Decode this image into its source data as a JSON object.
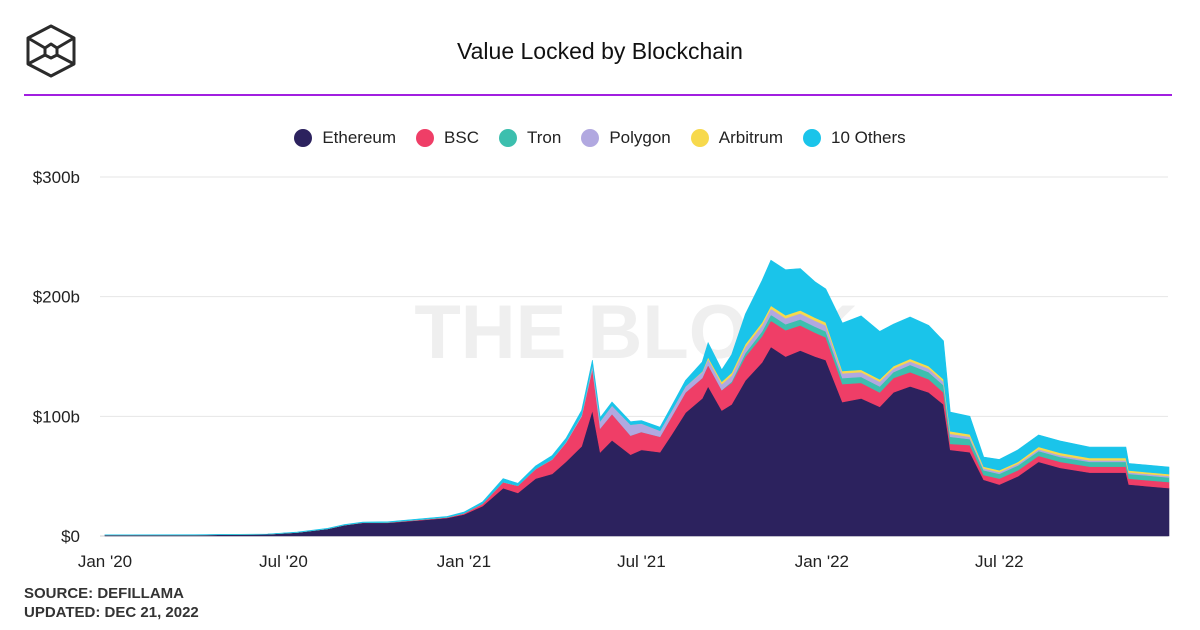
{
  "title": "Value Locked by Blockchain",
  "watermark": "THE BLOCK",
  "footer": {
    "source": "SOURCE: DEFILLAMA",
    "updated": "UPDATED: DEC 21, 2022"
  },
  "chart_data": {
    "type": "area",
    "stacked": true,
    "title": "Value Locked by Blockchain",
    "xlabel": "",
    "ylabel": "",
    "ylim": [
      0,
      300
    ],
    "yunit": "billion USD",
    "yticks": [
      {
        "v": 0,
        "label": "$0"
      },
      {
        "v": 100,
        "label": "$100b"
      },
      {
        "v": 200,
        "label": "$200b"
      },
      {
        "v": 300,
        "label": "$300b"
      }
    ],
    "xticks": [
      {
        "d": "2020-01-01",
        "label": "Jan '20"
      },
      {
        "d": "2020-07-01",
        "label": "Jul '20"
      },
      {
        "d": "2021-01-01",
        "label": "Jan '21"
      },
      {
        "d": "2021-07-01",
        "label": "Jul '21"
      },
      {
        "d": "2022-01-01",
        "label": "Jan '22"
      },
      {
        "d": "2022-07-01",
        "label": "Jul '22"
      }
    ],
    "xrange": [
      "2020-01-01",
      "2022-12-21"
    ],
    "grid": true,
    "legend_position": "top-center",
    "x": [
      "2020-01-01",
      "2020-04-01",
      "2020-06-15",
      "2020-07-15",
      "2020-08-15",
      "2020-09-01",
      "2020-09-20",
      "2020-10-15",
      "2020-11-15",
      "2020-12-15",
      "2021-01-01",
      "2021-01-20",
      "2021-02-10",
      "2021-02-25",
      "2021-03-15",
      "2021-04-01",
      "2021-04-15",
      "2021-05-01",
      "2021-05-12",
      "2021-05-20",
      "2021-06-01",
      "2021-06-20",
      "2021-07-01",
      "2021-07-20",
      "2021-08-01",
      "2021-08-15",
      "2021-09-01",
      "2021-09-07",
      "2021-09-21",
      "2021-10-01",
      "2021-10-15",
      "2021-11-01",
      "2021-11-10",
      "2021-11-25",
      "2021-12-10",
      "2021-12-25",
      "2022-01-05",
      "2022-01-22",
      "2022-02-10",
      "2022-03-01",
      "2022-03-15",
      "2022-04-01",
      "2022-04-20",
      "2022-05-05",
      "2022-05-12",
      "2022-06-01",
      "2022-06-15",
      "2022-07-01",
      "2022-07-20",
      "2022-08-10",
      "2022-09-01",
      "2022-10-01",
      "2022-11-07",
      "2022-11-10",
      "2022-12-21"
    ],
    "series": [
      {
        "name": "Ethereum",
        "color": "#2c225e",
        "values": [
          0.8,
          0.9,
          1.5,
          3,
          6,
          9,
          11,
          11,
          13,
          15,
          18,
          25,
          40,
          36,
          48,
          52,
          62,
          75,
          105,
          70,
          80,
          68,
          72,
          70,
          85,
          103,
          115,
          125,
          105,
          110,
          130,
          145,
          158,
          150,
          155,
          150,
          147,
          112,
          115,
          108,
          120,
          125,
          120,
          110,
          72,
          70,
          47,
          43,
          50,
          62,
          57,
          53,
          53,
          43,
          40
        ]
      },
      {
        "name": "BSC",
        "color": "#ef3e67",
        "values": [
          0,
          0,
          0,
          0,
          0,
          0.1,
          0.2,
          0.3,
          0.5,
          0.6,
          1,
          2,
          5,
          6,
          8,
          12,
          16,
          25,
          35,
          20,
          22,
          16,
          15,
          13,
          15,
          17,
          17,
          18,
          17,
          18,
          20,
          22,
          22,
          22,
          21,
          20,
          19,
          15,
          13,
          12,
          12,
          12,
          11,
          10,
          5,
          6,
          4,
          5,
          5,
          5,
          5,
          5,
          5,
          5,
          5
        ]
      },
      {
        "name": "Tron",
        "color": "#3cbfae",
        "values": [
          0,
          0,
          0,
          0,
          0,
          0,
          0,
          0,
          0,
          0,
          0,
          0,
          0,
          0,
          0,
          0,
          0,
          0,
          0,
          0,
          0,
          0,
          0,
          0,
          0,
          0,
          0,
          0,
          0,
          1,
          3,
          4,
          5,
          5,
          5,
          5,
          5,
          5,
          5,
          5,
          5,
          6,
          6,
          6,
          6,
          5,
          4,
          4,
          4,
          4,
          4,
          4,
          4,
          4,
          4
        ]
      },
      {
        "name": "Polygon",
        "color": "#b1a8e0",
        "values": [
          0,
          0,
          0,
          0,
          0,
          0,
          0,
          0,
          0,
          0,
          0,
          0,
          0,
          0,
          0,
          0.3,
          0.5,
          1,
          3,
          6,
          7,
          9,
          7,
          5,
          5,
          5,
          5,
          5,
          5,
          5,
          5,
          5,
          5,
          5,
          5,
          5,
          5,
          4,
          4,
          4,
          3,
          3,
          3,
          3,
          2.5,
          2,
          1.5,
          1.5,
          1.5,
          1.5,
          1.5,
          1.3,
          1.3,
          1.2,
          1.2
        ]
      },
      {
        "name": "Arbitrum",
        "color": "#f7d94c",
        "values": [
          0,
          0,
          0,
          0,
          0,
          0,
          0,
          0,
          0,
          0,
          0,
          0,
          0,
          0,
          0,
          0,
          0,
          0,
          0,
          0,
          0,
          0,
          0,
          0,
          0,
          0,
          0.5,
          1.5,
          2,
          2.5,
          2.5,
          2.5,
          2.5,
          2.5,
          2.5,
          2.5,
          2.5,
          2,
          2,
          2,
          2,
          2,
          2,
          2,
          2,
          2,
          1.5,
          1.5,
          1.5,
          2,
          2,
          2,
          2,
          1.5,
          1.5
        ]
      },
      {
        "name": "10 Others",
        "color": "#1ac4ea",
        "values": [
          0.2,
          0.2,
          0.2,
          0.3,
          0.4,
          0.5,
          0.5,
          0.6,
          0.7,
          0.8,
          1,
          1.5,
          3,
          2,
          2.5,
          3,
          3,
          4,
          4,
          3,
          3,
          2.5,
          2.5,
          3,
          4,
          5,
          8,
          12,
          10,
          15,
          25,
          35,
          38,
          38,
          35,
          30,
          28,
          40,
          45,
          40,
          35,
          35,
          34,
          32,
          16,
          15,
          8,
          9,
          10,
          10,
          10,
          9,
          9,
          6,
          6
        ]
      }
    ]
  }
}
